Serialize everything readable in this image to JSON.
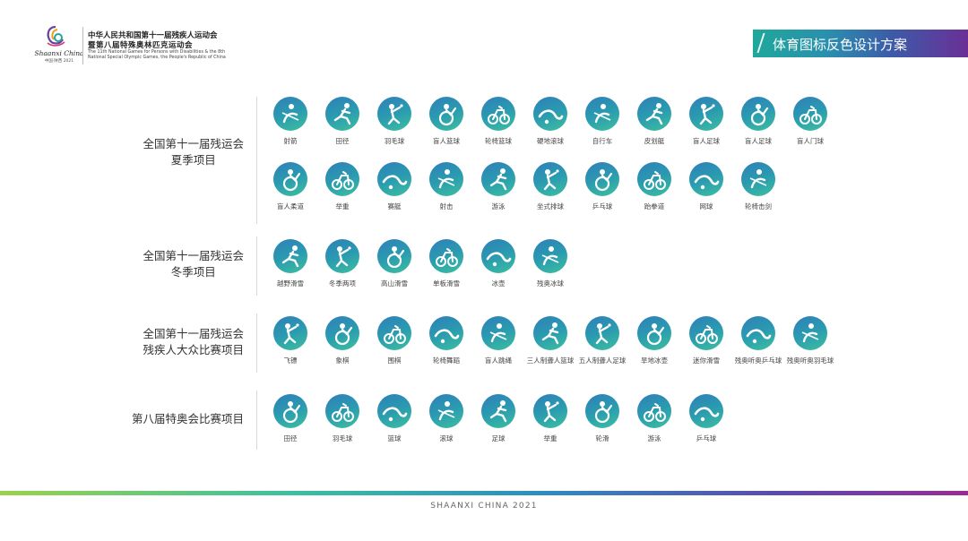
{
  "header": {
    "logo_word": "Shaanxi China",
    "logo_year": "中国·陕西 2021",
    "title_cn_line1": "中华人民共和国第十一届残疾人运动会",
    "title_cn_line2": "暨第八届特殊奥林匹克运动会",
    "title_en": "The 11th National Games for Persons with Disabilities & the 8th National Special Olympic Games, the People's Republic of China"
  },
  "title_banner": "体育图标反色设计方案",
  "colors": {
    "icon_gradient_start": "#2f7fb8",
    "icon_gradient_end": "#3dbfa0",
    "banner_start": "#1fa89a",
    "banner_end": "#6a2f97"
  },
  "sections": [
    {
      "label_line1": "全国第十一届残运会",
      "label_line2": "夏季项目",
      "rows": [
        [
          "射箭",
          "田径",
          "羽毛球",
          "盲人篮球",
          "轮椅篮球",
          "硬地滚球",
          "自行车",
          "皮划艇",
          "盲人足球",
          "盲人足球",
          "盲人门球"
        ],
        [
          "盲人柔道",
          "举重",
          "赛艇",
          "射击",
          "游泳",
          "坐式排球",
          "乒乓球",
          "跆拳道",
          "网球",
          "轮椅击剑"
        ]
      ]
    },
    {
      "label_line1": "全国第十一届残运会",
      "label_line2": "冬季项目",
      "rows": [
        [
          "越野滑雪",
          "冬季两项",
          "高山滑雪",
          "单板滑雪",
          "冰壶",
          "残奥冰球"
        ]
      ]
    },
    {
      "label_line1": "全国第十一届残运会",
      "label_line2": "残疾人大众比赛项目",
      "rows": [
        [
          "飞镖",
          "象棋",
          "围棋",
          "轮椅舞蹈",
          "盲人跳绳",
          "三人制聋人篮球",
          "五人制聋人足球",
          "旱地冰壶",
          "迷你滑雪",
          "残奥听奥乒乓球",
          "残奥听奥羽毛球"
        ]
      ]
    },
    {
      "label_line1": "第八届特奥会比赛项目",
      "label_line2": "",
      "rows": [
        [
          "田径",
          "羽毛球",
          "篮球",
          "滚球",
          "足球",
          "举重",
          "轮滑",
          "游泳",
          "乒乓球"
        ]
      ]
    }
  ],
  "footer": "SHAANXI CHINA 2021"
}
